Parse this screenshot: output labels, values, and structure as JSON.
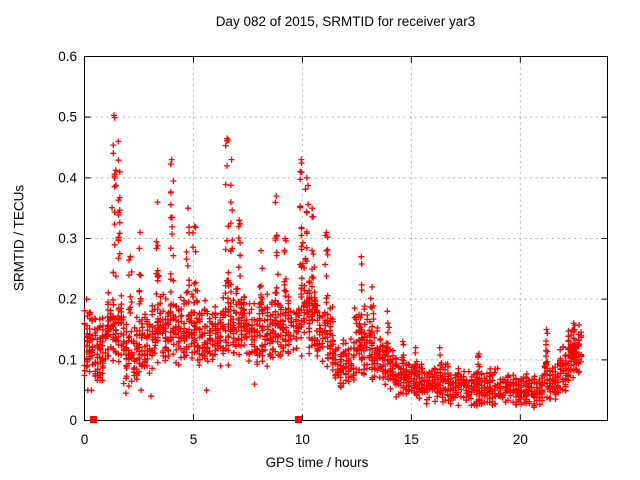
{
  "chart_data": {
    "type": "scatter",
    "title": "Day 082 of 2015, SRMTID for receiver yar3",
    "xlabel": "GPS time / hours",
    "ylabel": "SRMTID / TECUs",
    "xlim": [
      0,
      24
    ],
    "ylim": [
      0,
      0.6
    ],
    "grid": true,
    "legend": "none",
    "grid_color": "#b3b3b3",
    "axis_color": "#000000",
    "marker": {
      "shape": "plus",
      "color": "#ff0000",
      "size": 7
    },
    "xticks": [
      {
        "v": 0,
        "label": "0"
      },
      {
        "v": 5,
        "label": "5"
      },
      {
        "v": 10,
        "label": "10"
      },
      {
        "v": 15,
        "label": "15"
      },
      {
        "v": 20,
        "label": "20"
      }
    ],
    "yticks": [
      {
        "v": 0.0,
        "label": "0"
      },
      {
        "v": 0.1,
        "label": "0.1"
      },
      {
        "v": 0.2,
        "label": "0.2"
      },
      {
        "v": 0.3,
        "label": "0.3"
      },
      {
        "v": 0.4,
        "label": "0.4"
      },
      {
        "v": 0.5,
        "label": "0.5"
      },
      {
        "v": 0.6,
        "label": "0.6"
      }
    ],
    "notable_points": [
      [
        1.35,
        0.503
      ],
      [
        1.55,
        0.46
      ],
      [
        2.55,
        0.31
      ],
      [
        3.35,
        0.36
      ],
      [
        4.0,
        0.43
      ],
      [
        4.75,
        0.35
      ],
      [
        5.05,
        0.32
      ],
      [
        6.55,
        0.465
      ],
      [
        6.75,
        0.43
      ],
      [
        7.1,
        0.33
      ],
      [
        8.8,
        0.37
      ],
      [
        9.95,
        0.43
      ],
      [
        10.2,
        0.4
      ],
      [
        11.1,
        0.31
      ],
      [
        12.7,
        0.27
      ],
      [
        13.2,
        0.22
      ],
      [
        21.2,
        0.15
      ],
      [
        22.45,
        0.16
      ]
    ],
    "zero_markers": {
      "shape": "filled-square",
      "points": [
        [
          0.41,
          0.0
        ],
        [
          9.82,
          0.0
        ]
      ]
    },
    "scatter_model": {
      "comment": "dense band segments [h_start, h_end, y_low, y_high, n_points] and spike columns [center_h, half_width_h, y_base, y_top, n_points] read from the plot",
      "bands": [
        [
          0.0,
          0.5,
          0.07,
          0.19,
          55
        ],
        [
          0.5,
          1.0,
          0.05,
          0.18,
          60
        ],
        [
          1.0,
          1.8,
          0.08,
          0.22,
          90
        ],
        [
          1.8,
          2.4,
          0.05,
          0.17,
          55
        ],
        [
          2.4,
          3.1,
          0.06,
          0.19,
          65
        ],
        [
          3.1,
          4.2,
          0.08,
          0.22,
          110
        ],
        [
          4.2,
          5.2,
          0.09,
          0.22,
          100
        ],
        [
          5.2,
          6.3,
          0.08,
          0.2,
          100
        ],
        [
          6.3,
          7.4,
          0.09,
          0.23,
          110
        ],
        [
          7.4,
          8.6,
          0.08,
          0.21,
          110
        ],
        [
          8.6,
          9.8,
          0.08,
          0.22,
          110
        ],
        [
          9.8,
          10.6,
          0.1,
          0.26,
          85
        ],
        [
          10.6,
          11.4,
          0.08,
          0.21,
          75
        ],
        [
          11.4,
          12.4,
          0.05,
          0.14,
          90
        ],
        [
          12.4,
          13.1,
          0.07,
          0.2,
          70
        ],
        [
          13.1,
          13.7,
          0.06,
          0.16,
          55
        ],
        [
          13.7,
          14.3,
          0.05,
          0.13,
          55
        ],
        [
          14.3,
          15.5,
          0.03,
          0.1,
          110
        ],
        [
          15.5,
          17.0,
          0.025,
          0.095,
          130
        ],
        [
          17.0,
          19.0,
          0.02,
          0.09,
          170
        ],
        [
          19.0,
          21.0,
          0.02,
          0.08,
          170
        ],
        [
          21.0,
          21.7,
          0.03,
          0.1,
          60
        ],
        [
          21.7,
          22.2,
          0.04,
          0.13,
          50
        ],
        [
          22.2,
          22.8,
          0.06,
          0.16,
          75
        ]
      ],
      "spikes": [
        [
          1.35,
          0.08,
          0.22,
          0.503,
          16
        ],
        [
          1.55,
          0.07,
          0.22,
          0.46,
          14
        ],
        [
          2.1,
          0.06,
          0.17,
          0.27,
          8
        ],
        [
          2.55,
          0.06,
          0.18,
          0.31,
          9
        ],
        [
          3.35,
          0.07,
          0.2,
          0.36,
          10
        ],
        [
          4.0,
          0.07,
          0.22,
          0.43,
          14
        ],
        [
          4.75,
          0.07,
          0.21,
          0.35,
          10
        ],
        [
          5.05,
          0.06,
          0.2,
          0.32,
          8
        ],
        [
          6.55,
          0.07,
          0.22,
          0.465,
          14
        ],
        [
          6.75,
          0.06,
          0.22,
          0.43,
          10
        ],
        [
          7.1,
          0.06,
          0.2,
          0.33,
          9
        ],
        [
          8.1,
          0.06,
          0.19,
          0.28,
          8
        ],
        [
          8.8,
          0.07,
          0.21,
          0.37,
          12
        ],
        [
          9.2,
          0.06,
          0.2,
          0.3,
          8
        ],
        [
          9.95,
          0.07,
          0.25,
          0.43,
          16
        ],
        [
          10.2,
          0.07,
          0.24,
          0.4,
          12
        ],
        [
          10.45,
          0.06,
          0.22,
          0.35,
          8
        ],
        [
          11.1,
          0.06,
          0.19,
          0.31,
          9
        ],
        [
          12.7,
          0.05,
          0.1,
          0.27,
          14
        ],
        [
          13.2,
          0.06,
          0.14,
          0.22,
          8
        ],
        [
          13.9,
          0.06,
          0.12,
          0.18,
          7
        ],
        [
          14.6,
          0.05,
          0.09,
          0.13,
          6
        ],
        [
          15.2,
          0.05,
          0.08,
          0.12,
          6
        ],
        [
          16.3,
          0.06,
          0.08,
          0.12,
          5
        ],
        [
          18.1,
          0.06,
          0.08,
          0.11,
          5
        ],
        [
          21.2,
          0.05,
          0.09,
          0.15,
          10
        ],
        [
          22.45,
          0.08,
          0.1,
          0.16,
          14
        ]
      ],
      "outliers": [
        [
          0.15,
          0.05
        ],
        [
          0.32,
          0.05
        ],
        [
          1.9,
          0.045
        ],
        [
          2.6,
          0.05
        ],
        [
          3.05,
          0.04
        ],
        [
          5.6,
          0.05
        ],
        [
          7.8,
          0.06
        ],
        [
          11.05,
          0.305
        ],
        [
          22.7,
          0.081
        ],
        [
          0.1,
          0.2
        ]
      ]
    }
  }
}
